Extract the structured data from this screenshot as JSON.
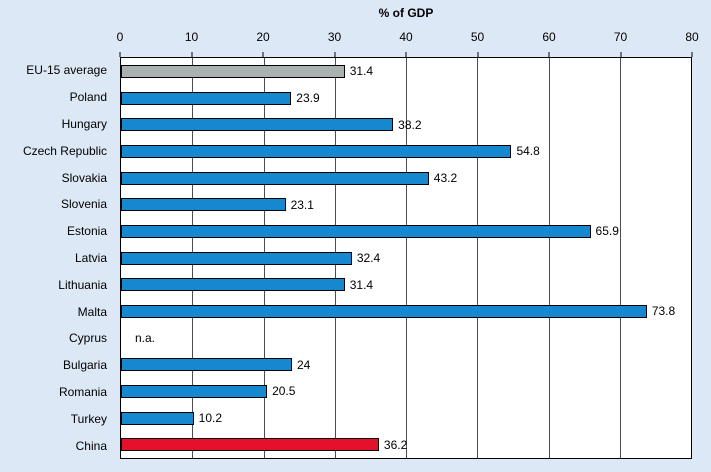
{
  "chart_data": {
    "type": "bar",
    "orientation": "horizontal",
    "title": "% of GDP",
    "xlabel": "",
    "ylabel": "",
    "xlim": [
      0,
      80
    ],
    "ticks": [
      0,
      10,
      20,
      30,
      40,
      50,
      60,
      70,
      80
    ],
    "grid": true,
    "legend": "none",
    "colors": {
      "blue": "#1588d0",
      "gray": "#a9b2b1",
      "red": "#e4112b"
    },
    "items": [
      {
        "label": "EU-15 average",
        "value": 31.4,
        "display": "31.4",
        "color": "gray"
      },
      {
        "label": "Poland",
        "value": 23.9,
        "display": "23.9",
        "color": "blue"
      },
      {
        "label": "Hungary",
        "value": 38.2,
        "display": "38.2",
        "color": "blue"
      },
      {
        "label": "Czech Republic",
        "value": 54.8,
        "display": "54.8",
        "color": "blue"
      },
      {
        "label": "Slovakia",
        "value": 43.2,
        "display": "43.2",
        "color": "blue"
      },
      {
        "label": "Slovenia",
        "value": 23.1,
        "display": "23.1",
        "color": "blue"
      },
      {
        "label": "Estonia",
        "value": 65.9,
        "display": "65.9",
        "color": "blue"
      },
      {
        "label": "Latvia",
        "value": 32.4,
        "display": "32.4",
        "color": "blue"
      },
      {
        "label": "Lithuania",
        "value": 31.4,
        "display": "31.4",
        "color": "blue"
      },
      {
        "label": "Malta",
        "value": 73.8,
        "display": "73.8",
        "color": "blue"
      },
      {
        "label": "Cyprus",
        "value": null,
        "display": "n.a.",
        "color": "blue"
      },
      {
        "label": "Bulgaria",
        "value": 24,
        "display": "24",
        "color": "blue"
      },
      {
        "label": "Romania",
        "value": 20.5,
        "display": "20.5",
        "color": "blue"
      },
      {
        "label": "Turkey",
        "value": 10.2,
        "display": "10.2",
        "color": "blue"
      },
      {
        "label": "China",
        "value": 36.2,
        "display": "36.2",
        "color": "red"
      }
    ]
  }
}
